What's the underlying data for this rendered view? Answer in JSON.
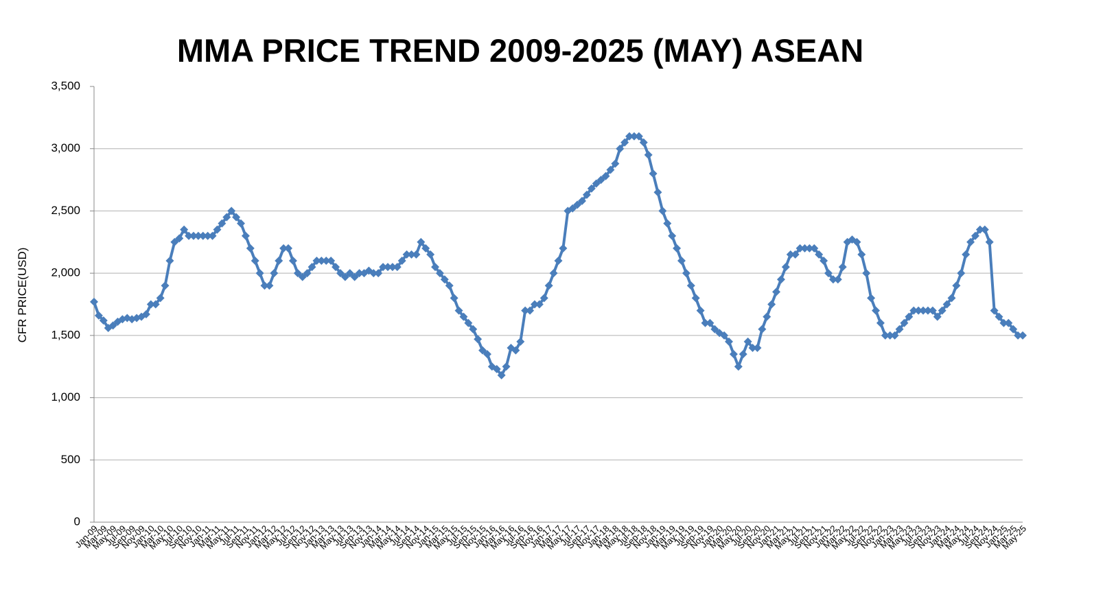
{
  "chart_data": {
    "type": "line",
    "title": "MMA PRICE TREND 2009-2025 (MAY)  ASEAN",
    "y_label": "CFR PRICE(USD)",
    "color": "#4a7ebb",
    "grid": true,
    "ylim": [
      0,
      3500
    ],
    "yticks": [
      0,
      500,
      {
        "value": 1000,
        "label": "1,000"
      },
      {
        "value": 1500,
        "label": "1,500"
      },
      {
        "value": 2000,
        "label": "2,000"
      },
      {
        "value": 2500,
        "label": "2,500"
      },
      {
        "value": 3000,
        "label": "3,000"
      },
      {
        "value": 3500,
        "label": "3,500"
      }
    ],
    "categories": [
      "Jan-09",
      null,
      "Mar-09",
      null,
      "May-09",
      null,
      "Jul-09",
      null,
      "Sep-09",
      null,
      "Nov-09",
      null,
      "Jan-10",
      null,
      "Mar-10",
      null,
      "May-10",
      null,
      "Jul-10",
      null,
      "Sep-10",
      null,
      "Nov-10",
      null,
      "Jan-11",
      null,
      "Mar-11",
      null,
      "May-11",
      null,
      "Jul-11",
      null,
      "Sep-11",
      null,
      "Nov-11",
      null,
      "Jan-12",
      null,
      "Mar-12",
      null,
      "May-12",
      null,
      "Jul-12",
      null,
      "Sep-12",
      null,
      "Nov-12",
      null,
      "Jan-13",
      null,
      "Mar-13",
      null,
      "May-13",
      null,
      "Jul-13",
      null,
      "Sep-13",
      null,
      "Nov-13",
      null,
      "Jan-14",
      null,
      "Mar-14",
      null,
      "May-14",
      null,
      "Jul-14",
      null,
      "Sep-14",
      null,
      "Nov-14",
      null,
      "Jan-15",
      null,
      "Mar-15",
      null,
      "May-15",
      null,
      "Jul-15",
      null,
      "Sep-15",
      null,
      "Nov-15",
      null,
      "Jan-16",
      null,
      "Mar-16",
      null,
      "May-16",
      null,
      "Jul-16",
      null,
      "Sep-16",
      null,
      "Nov-16",
      null,
      "Jan-17",
      null,
      "Mar-17",
      null,
      "May-17",
      null,
      "Jul-17",
      null,
      "Sep-17",
      null,
      "Nov-17",
      null,
      "Jan-18",
      null,
      "Mar-18",
      null,
      "May-18",
      null,
      "Jul-18",
      null,
      "Sep-18",
      null,
      "Nov-18",
      null,
      "Jan-19",
      null,
      "Mar-19",
      null,
      "May-19",
      null,
      "Jul-19",
      null,
      "Sep-19",
      null,
      "Nov-19",
      null,
      "Jan-20",
      null,
      "Mar-20",
      null,
      "May-20",
      null,
      "Jul-20",
      null,
      "Sep-20",
      null,
      "Nov-20",
      null,
      "Jan-21",
      null,
      "Mar-21",
      null,
      "May-21",
      null,
      "Jul-21",
      null,
      "Sep-21",
      null,
      "Nov-21",
      null,
      "Jan-22",
      null,
      "Mar-22",
      null,
      "May-22",
      null,
      "Jul-22",
      null,
      "Sep-22",
      null,
      "Nov-22",
      null,
      "Jan-23",
      null,
      "Mar-23",
      null,
      "May-23",
      null,
      "Jul-23",
      null,
      "Sep-23",
      null,
      "Nov-23",
      null,
      "Jan-24",
      null,
      "Mar-24",
      null,
      "May-24",
      null,
      "Jul-24",
      null,
      "Sep-24",
      null,
      "Nov-24",
      null,
      "Jan-25",
      null,
      "Mar-25",
      null,
      "May-25"
    ],
    "values": [
      1770,
      1660,
      1620,
      1560,
      1580,
      1610,
      1630,
      1640,
      1630,
      1640,
      1650,
      1670,
      1750,
      1750,
      1800,
      1900,
      2100,
      2250,
      2280,
      2350,
      2300,
      2300,
      2300,
      2300,
      2300,
      2300,
      2350,
      2400,
      2450,
      2500,
      2450,
      2400,
      2300,
      2200,
      2100,
      2000,
      1900,
      1900,
      2000,
      2100,
      2200,
      2200,
      2100,
      2000,
      1970,
      2000,
      2050,
      2100,
      2100,
      2100,
      2100,
      2050,
      2000,
      1970,
      2000,
      1970,
      2000,
      2000,
      2020,
      2000,
      2000,
      2050,
      2050,
      2050,
      2050,
      2100,
      2150,
      2150,
      2150,
      2250,
      2200,
      2150,
      2050,
      2000,
      1950,
      1900,
      1800,
      1700,
      1650,
      1600,
      1550,
      1470,
      1380,
      1350,
      1250,
      1230,
      1180,
      1250,
      1400,
      1380,
      1450,
      1700,
      1700,
      1750,
      1750,
      1800,
      1900,
      2000,
      2100,
      2200,
      2500,
      2520,
      2550,
      2580,
      2630,
      2680,
      2720,
      2750,
      2780,
      2830,
      2880,
      3000,
      3050,
      3100,
      3100,
      3100,
      3050,
      2950,
      2800,
      2650,
      2500,
      2400,
      2300,
      2200,
      2100,
      2000,
      1900,
      1800,
      1700,
      1600,
      1600,
      1550,
      1520,
      1500,
      1450,
      1350,
      1250,
      1350,
      1450,
      1400,
      1400,
      1550,
      1650,
      1750,
      1850,
      1950,
      2050,
      2150,
      2150,
      2200,
      2200,
      2200,
      2200,
      2150,
      2100,
      2000,
      1950,
      1950,
      2050,
      2250,
      2270,
      2250,
      2150,
      2000,
      1800,
      1700,
      1600,
      1500,
      1500,
      1500,
      1550,
      1600,
      1650,
      1700,
      1700,
      1700,
      1700,
      1700,
      1650,
      1700,
      1750,
      1800,
      1900,
      2000,
      2150,
      2250,
      2300,
      2350,
      2350,
      2250,
      1700,
      1650,
      1600,
      1600,
      1550,
      1500,
      1500
    ]
  }
}
